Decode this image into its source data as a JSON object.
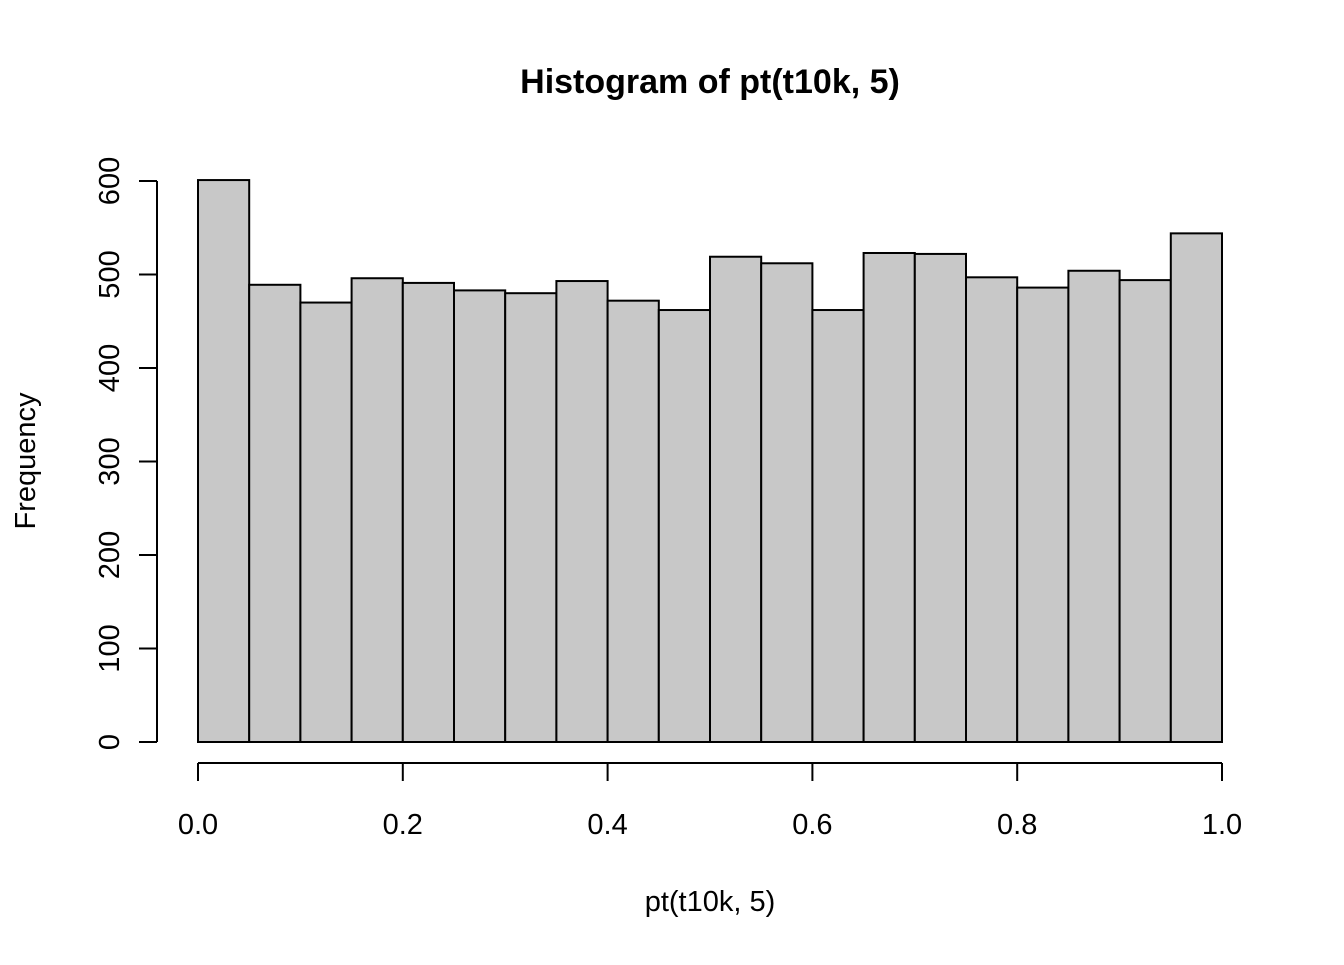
{
  "chart_data": {
    "type": "bar",
    "title": "Histogram of pt(t10k, 5)",
    "xlabel": "pt(t10k, 5)",
    "ylabel": "Frequency",
    "bin_edges": [
      0.0,
      0.05,
      0.1,
      0.15,
      0.2,
      0.25,
      0.3,
      0.35,
      0.4,
      0.45,
      0.5,
      0.55,
      0.6,
      0.65,
      0.7,
      0.75,
      0.8,
      0.85,
      0.9,
      0.95,
      1.0
    ],
    "values": [
      601,
      489,
      470,
      496,
      491,
      483,
      480,
      493,
      472,
      462,
      519,
      512,
      462,
      523,
      522,
      497,
      486,
      504,
      494,
      544
    ],
    "xlim": [
      0.0,
      1.0
    ],
    "ylim": [
      0,
      600
    ],
    "x_ticks": [
      {
        "value": 0.0,
        "label": "0.0"
      },
      {
        "value": 0.2,
        "label": "0.2"
      },
      {
        "value": 0.4,
        "label": "0.4"
      },
      {
        "value": 0.6,
        "label": "0.6"
      },
      {
        "value": 0.8,
        "label": "0.8"
      },
      {
        "value": 1.0,
        "label": "1.0"
      }
    ],
    "y_ticks": [
      {
        "value": 0,
        "label": "0"
      },
      {
        "value": 100,
        "label": "100"
      },
      {
        "value": 200,
        "label": "200"
      },
      {
        "value": 300,
        "label": "300"
      },
      {
        "value": 400,
        "label": "400"
      },
      {
        "value": 500,
        "label": "500"
      },
      {
        "value": 600,
        "label": "600"
      }
    ],
    "bar_color": "#c8c8c8",
    "bar_edge_color": "#000000",
    "grid": false,
    "legend": "none"
  }
}
